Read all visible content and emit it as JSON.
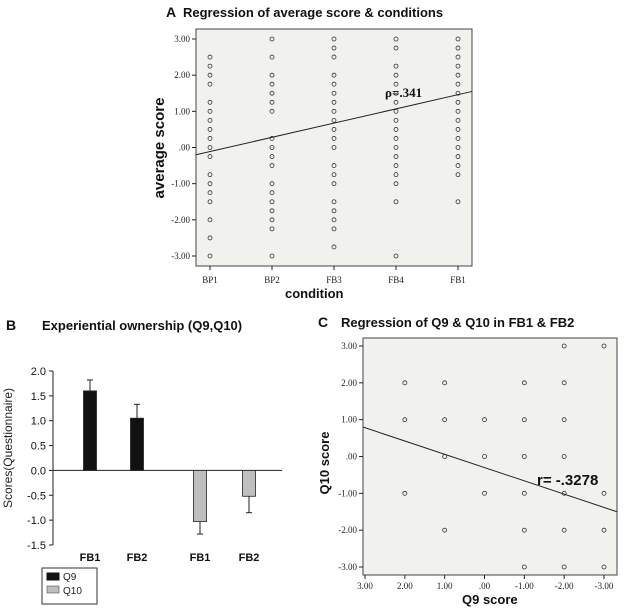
{
  "chart_data": [
    {
      "id": "A",
      "panel_letter": "A",
      "type": "scatter",
      "title": "Regression of average score & conditions",
      "xlabel": "condition",
      "ylabel": "average score",
      "categories": [
        "BP1",
        "BP2",
        "FB3",
        "FB4",
        "FB1"
      ],
      "yticks": [
        "-3.00",
        "-2.00",
        "-1.00",
        ".00",
        "1.00",
        "2.00",
        "3.00"
      ],
      "ylim": [
        -3,
        3
      ],
      "annotation": "ρ=.341",
      "regression": {
        "y_at_first": -0.08,
        "y_at_last": 1.45
      },
      "points": [
        {
          "x": 0,
          "ys": [
            2.5,
            2.25,
            2.0,
            1.75,
            1.25,
            1.0,
            0.75,
            0.5,
            0.25,
            0.0,
            -0.25,
            -0.75,
            -1.0,
            -1.25,
            -1.5,
            -2.0,
            -2.5,
            -3.0
          ]
        },
        {
          "x": 1,
          "ys": [
            3.0,
            2.5,
            2.0,
            1.75,
            1.5,
            1.25,
            1.0,
            0.25,
            0.0,
            -0.25,
            -0.5,
            -1.0,
            -1.25,
            -1.5,
            -1.75,
            -2.0,
            -2.25,
            -3.0
          ]
        },
        {
          "x": 2,
          "ys": [
            3.0,
            2.75,
            2.5,
            2.0,
            1.75,
            1.5,
            1.25,
            1.0,
            0.75,
            0.5,
            0.25,
            0.0,
            -0.5,
            -0.75,
            -1.0,
            -1.5,
            -1.75,
            -2.0,
            -2.25,
            -2.75
          ]
        },
        {
          "x": 3,
          "ys": [
            3.0,
            2.75,
            2.25,
            2.0,
            1.75,
            1.5,
            1.25,
            1.0,
            0.75,
            0.5,
            0.25,
            0.0,
            -0.25,
            -0.5,
            -0.75,
            -1.0,
            -1.5,
            -3.0
          ]
        },
        {
          "x": 4,
          "ys": [
            3.0,
            2.75,
            2.5,
            2.25,
            2.0,
            1.75,
            1.5,
            1.25,
            1.0,
            0.75,
            0.5,
            0.25,
            0.0,
            -0.25,
            -0.5,
            -0.75,
            -1.5
          ]
        }
      ]
    },
    {
      "id": "B",
      "panel_letter": "B",
      "type": "bar",
      "title": "Experiential ownership (Q9,Q10)",
      "ylabel": "Scores(Questionnaire)",
      "categories": [
        "FB1",
        "FB2",
        "FB1",
        "FB2"
      ],
      "yticks": [
        "2.0",
        "1.5",
        "1.0",
        "0.5",
        "0.0",
        "-0.5",
        "-1.0",
        "-1.5"
      ],
      "ylim": [
        -1.5,
        2.0
      ],
      "series": [
        {
          "name": "Q9",
          "color": "#111111",
          "values": [
            1.6,
            1.05,
            null,
            null
          ],
          "errors": [
            0.22,
            0.28,
            null,
            null
          ]
        },
        {
          "name": "Q10",
          "color": "#bfbfbf",
          "values": [
            null,
            null,
            -1.03,
            -0.52
          ],
          "errors": [
            null,
            null,
            0.25,
            0.33
          ]
        }
      ],
      "legend": [
        "Q9",
        "Q10"
      ]
    },
    {
      "id": "C",
      "panel_letter": "C",
      "type": "scatter",
      "title": "Regression of Q9 & Q10 in FB1 & FB2",
      "xlabel": "Q9 score",
      "ylabel": "Q10 score",
      "xticks": [
        "3.00",
        "2.00",
        "1.00",
        ".00",
        "-1.00",
        "-2.00",
        "-3.00"
      ],
      "yticks": [
        "-3.00",
        "-2.00",
        "-1.00",
        ".00",
        "1.00",
        "2.00",
        "3.00"
      ],
      "xlim": [
        3,
        -3
      ],
      "ylim": [
        -3,
        3
      ],
      "annotation": "r= -.3278",
      "regression": {
        "y_at_xmin": 0.8,
        "y_at_xmax": -1.5
      },
      "points": [
        [
          2,
          2
        ],
        [
          2,
          1
        ],
        [
          2,
          -1
        ],
        [
          1,
          2
        ],
        [
          1,
          1
        ],
        [
          1,
          0
        ],
        [
          1,
          -2
        ],
        [
          0,
          1
        ],
        [
          0,
          0
        ],
        [
          0,
          -1
        ],
        [
          -1,
          2
        ],
        [
          -1,
          1
        ],
        [
          -1,
          0
        ],
        [
          -1,
          -1
        ],
        [
          -1,
          -2
        ],
        [
          -1,
          -3
        ],
        [
          -2,
          3
        ],
        [
          -2,
          2
        ],
        [
          -2,
          1
        ],
        [
          -2,
          0
        ],
        [
          -2,
          -1
        ],
        [
          -2,
          -2
        ],
        [
          -2,
          -3
        ],
        [
          -3,
          3
        ],
        [
          -3,
          -1
        ],
        [
          -3,
          -2
        ],
        [
          -3,
          -3
        ]
      ]
    }
  ]
}
